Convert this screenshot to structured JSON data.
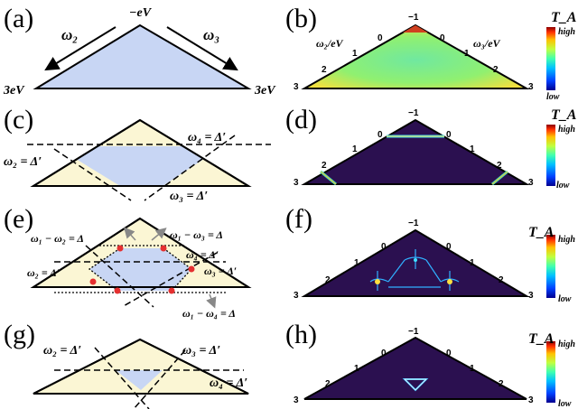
{
  "panels": {
    "a": "(a)",
    "b": "(b)",
    "c": "(c)",
    "d": "(d)",
    "e": "(e)",
    "f": "(f)",
    "g": "(g)",
    "h": "(h)"
  },
  "panel_a": {
    "top": "−eV",
    "left": "3eV",
    "right": "3eV",
    "w2": "ω₂",
    "w3": "ω₃"
  },
  "panel_c": {
    "w4": "ω₄ = Δ′",
    "w2": "ω₂ = Δ′",
    "w3": "ω₃ = Δ′"
  },
  "panel_e": {
    "w1w2": "ω₁ − ω₂ = Δ",
    "w1w3": "ω₁ − ω₃ = Δ",
    "w4": "ω₄ = Δ′",
    "w2": "ω₂ = Δ′",
    "w3": "ω₃ = Δ′",
    "w1w4": "ω₁ − ω₄ = Δ"
  },
  "panel_g": {
    "w2": "ω₂ = Δ′",
    "w3": "ω₃ = Δ′",
    "w4": "ω₄ = Δ′"
  },
  "heatmap_axes": {
    "b_left_label": "ω₂/eV",
    "b_right_label": "ω₃/eV",
    "apex": "−1",
    "t0": "0",
    "t1": "1",
    "t2": "2",
    "t3": "3"
  },
  "colorbar": {
    "title": "T_A",
    "high": "high",
    "low": "low"
  },
  "colors": {
    "blue_fill": "#c8d6f4",
    "cream_fill": "#fbf6d4",
    "dark_bg": "#2b1050",
    "red_point": "#e53030"
  }
}
